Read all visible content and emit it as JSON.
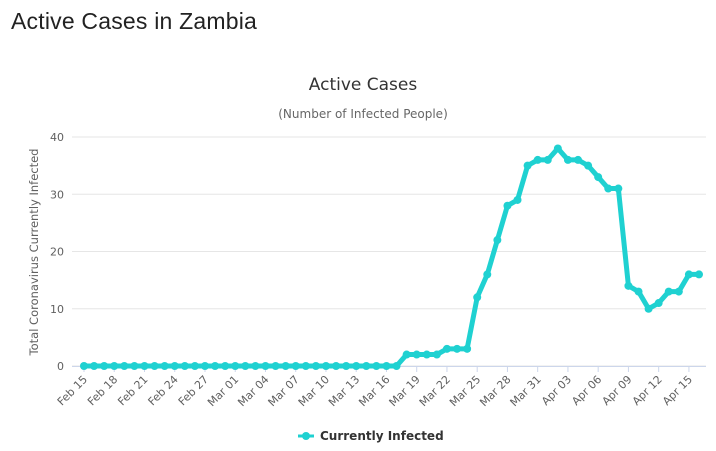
{
  "page": {
    "heading": "Active Cases in Zambia"
  },
  "chart_data": {
    "type": "line",
    "title": "Active Cases",
    "subtitle": "(Number of Infected People)",
    "xlabel": "",
    "ylabel": "Total Coronavirus Currently Infected",
    "ylim": [
      0,
      40
    ],
    "yticks": [
      0,
      10,
      20,
      30,
      40
    ],
    "grid": true,
    "legend": "bottom-center",
    "x": [
      "Feb 15",
      "Feb 16",
      "Feb 17",
      "Feb 18",
      "Feb 19",
      "Feb 20",
      "Feb 21",
      "Feb 22",
      "Feb 23",
      "Feb 24",
      "Feb 25",
      "Feb 26",
      "Feb 27",
      "Feb 28",
      "Feb 29",
      "Mar 01",
      "Mar 02",
      "Mar 03",
      "Mar 04",
      "Mar 05",
      "Mar 06",
      "Mar 07",
      "Mar 08",
      "Mar 09",
      "Mar 10",
      "Mar 11",
      "Mar 12",
      "Mar 13",
      "Mar 14",
      "Mar 15",
      "Mar 16",
      "Mar 17",
      "Mar 18",
      "Mar 19",
      "Mar 20",
      "Mar 21",
      "Mar 22",
      "Mar 23",
      "Mar 24",
      "Mar 25",
      "Mar 26",
      "Mar 27",
      "Mar 28",
      "Mar 29",
      "Mar 30",
      "Mar 31",
      "Apr 01",
      "Apr 02",
      "Apr 03",
      "Apr 04",
      "Apr 05",
      "Apr 06",
      "Apr 07",
      "Apr 08",
      "Apr 09",
      "Apr 10",
      "Apr 11",
      "Apr 12",
      "Apr 13",
      "Apr 14",
      "Apr 15",
      "Apr 16"
    ],
    "xtick_labels": [
      "Feb 15",
      "Feb 18",
      "Feb 21",
      "Feb 24",
      "Feb 27",
      "Mar 01",
      "Mar 04",
      "Mar 07",
      "Mar 10",
      "Mar 13",
      "Mar 16",
      "Mar 19",
      "Mar 22",
      "Mar 25",
      "Mar 28",
      "Mar 31",
      "Apr 03",
      "Apr 06",
      "Apr 09",
      "Apr 12",
      "Apr 15"
    ],
    "series": [
      {
        "name": "Currently Infected",
        "color": "#1fd1d1",
        "values": [
          0,
          0,
          0,
          0,
          0,
          0,
          0,
          0,
          0,
          0,
          0,
          0,
          0,
          0,
          0,
          0,
          0,
          0,
          0,
          0,
          0,
          0,
          0,
          0,
          0,
          0,
          0,
          0,
          0,
          0,
          0,
          0,
          2,
          2,
          2,
          2,
          3,
          3,
          3,
          12,
          16,
          22,
          28,
          29,
          35,
          36,
          36,
          38,
          36,
          36,
          35,
          33,
          31,
          31,
          14,
          13,
          10,
          11,
          13,
          13,
          16,
          16
        ]
      }
    ]
  }
}
